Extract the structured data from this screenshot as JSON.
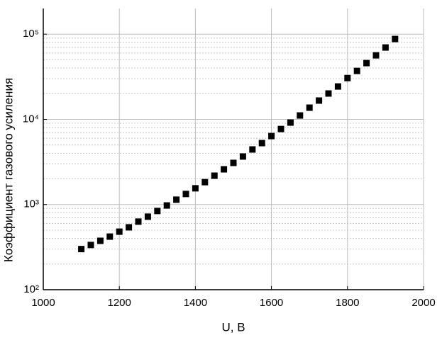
{
  "chart_data": {
    "type": "scatter",
    "x_label": "U, B",
    "y_label": "Коэффициент газового усиления",
    "x": [
      1100,
      1125,
      1150,
      1175,
      1200,
      1225,
      1250,
      1275,
      1300,
      1325,
      1350,
      1375,
      1400,
      1425,
      1450,
      1475,
      1500,
      1525,
      1550,
      1575,
      1600,
      1625,
      1650,
      1675,
      1700,
      1725,
      1750,
      1775,
      1800,
      1825,
      1850,
      1875,
      1900,
      1925
    ],
    "values": [
      300,
      335,
      375,
      420,
      480,
      540,
      630,
      720,
      840,
      975,
      1140,
      1330,
      1550,
      1830,
      2180,
      2590,
      3080,
      3660,
      4430,
      5260,
      6360,
      7700,
      9160,
      11100,
      13700,
      16600,
      20100,
      24300,
      30500,
      37000,
      45700,
      56400,
      69700,
      87700
    ],
    "color": "#000000",
    "xlim": [
      1000,
      2000
    ],
    "xticks": [
      1000,
      1200,
      1400,
      1600,
      1800,
      2000
    ],
    "ylim": [
      100,
      200000
    ],
    "yticks": [
      {
        "value": 100,
        "label": "10²"
      },
      {
        "value": 1000,
        "label": "10³"
      },
      {
        "value": 10000,
        "label": "10⁴"
      },
      {
        "value": 100000,
        "label": "10⁵"
      }
    ],
    "log_y": true,
    "grid": true
  }
}
